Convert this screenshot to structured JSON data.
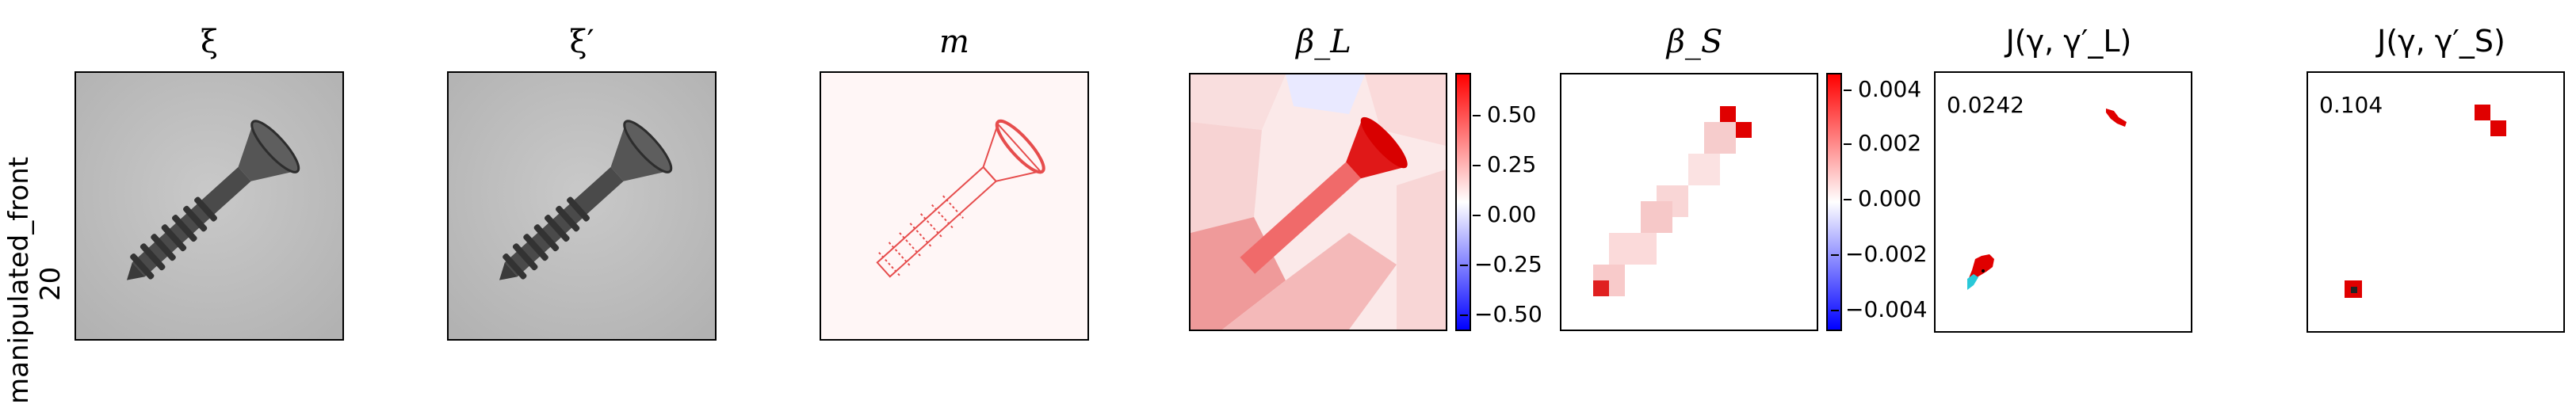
{
  "row": {
    "label_line1": "manipulated_front",
    "label_line2": "20"
  },
  "panels": [
    {
      "title": "ξ"
    },
    {
      "title": "ξ′"
    },
    {
      "title": "m"
    },
    {
      "title": "β_L"
    },
    {
      "title": "β_S"
    },
    {
      "title": "J(γ, γ′_L)",
      "score": "0.0242"
    },
    {
      "title": "J(γ, γ′_S)",
      "score": "0.104"
    }
  ],
  "colorbar_L": {
    "ticks": [
      "0.50",
      "0.25",
      "0.00",
      "−0.25",
      "−0.50"
    ]
  },
  "colorbar_S": {
    "ticks": [
      "0.004",
      "0.002",
      "0.000",
      "−0.002",
      "−0.004"
    ]
  },
  "colors": {
    "positive": "#ff0000",
    "negative": "#0000ff",
    "neutral": "#ffffff",
    "cyan": "#29c8d8"
  }
}
